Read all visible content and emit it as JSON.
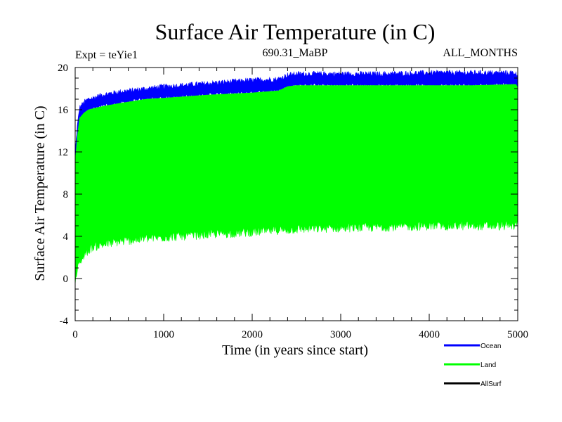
{
  "chart_data": {
    "type": "area",
    "title": "Surface Air Temperature (in C)",
    "subtitle_left": "Expt = teYie1",
    "subtitle_center": "690.31_MaBP",
    "subtitle_right": "ALL_MONTHS",
    "xlabel": "Time (in years since start)",
    "ylabel": "Surface Air Temperature (in C)",
    "xlim": [
      0,
      5000
    ],
    "ylim": [
      -4,
      20
    ],
    "xticks": [
      0,
      1000,
      2000,
      3000,
      4000,
      5000
    ],
    "yticks": [
      -4,
      0,
      4,
      8,
      12,
      16,
      20
    ],
    "legend_position": "bottom-right",
    "series": [
      {
        "name": "Ocean",
        "color": "#0000ff",
        "x": [
          0,
          25,
          50,
          100,
          150,
          200,
          300,
          500,
          800,
          1000,
          1500,
          2000,
          2300,
          2400,
          2500,
          3000,
          3500,
          4000,
          4500,
          4980,
          5000
        ],
        "low": [
          11.0,
          13.5,
          15.2,
          15.7,
          16.0,
          16.1,
          16.3,
          16.6,
          17.0,
          17.1,
          17.4,
          17.6,
          17.8,
          18.2,
          18.3,
          18.3,
          18.3,
          18.3,
          18.3,
          18.4,
          18.1
        ],
        "high": [
          12.0,
          14.5,
          16.2,
          16.7,
          17.0,
          17.1,
          17.4,
          17.7,
          18.0,
          18.2,
          18.5,
          18.8,
          18.9,
          19.3,
          19.4,
          19.4,
          19.4,
          19.5,
          19.5,
          19.5,
          18.8
        ]
      },
      {
        "name": "Land",
        "color": "#00ff00",
        "x": [
          0,
          25,
          50,
          100,
          150,
          200,
          300,
          500,
          800,
          1000,
          1500,
          2000,
          2300,
          2400,
          2500,
          3000,
          3500,
          4000,
          4500,
          4980,
          5000
        ],
        "low": [
          -0.5,
          0.8,
          1.5,
          2.2,
          2.7,
          3.0,
          3.2,
          3.5,
          3.8,
          3.9,
          4.2,
          4.4,
          4.6,
          4.6,
          4.7,
          4.8,
          4.9,
          5.0,
          5.0,
          5.0,
          5.5
        ],
        "high": [
          11.0,
          13.5,
          15.2,
          15.7,
          16.0,
          16.1,
          16.3,
          16.6,
          17.0,
          17.1,
          17.4,
          17.6,
          17.8,
          18.2,
          18.3,
          18.3,
          18.3,
          18.3,
          18.3,
          18.4,
          18.1
        ]
      },
      {
        "name": "AllSurf",
        "color": "#000000",
        "x": [],
        "values": []
      }
    ]
  }
}
